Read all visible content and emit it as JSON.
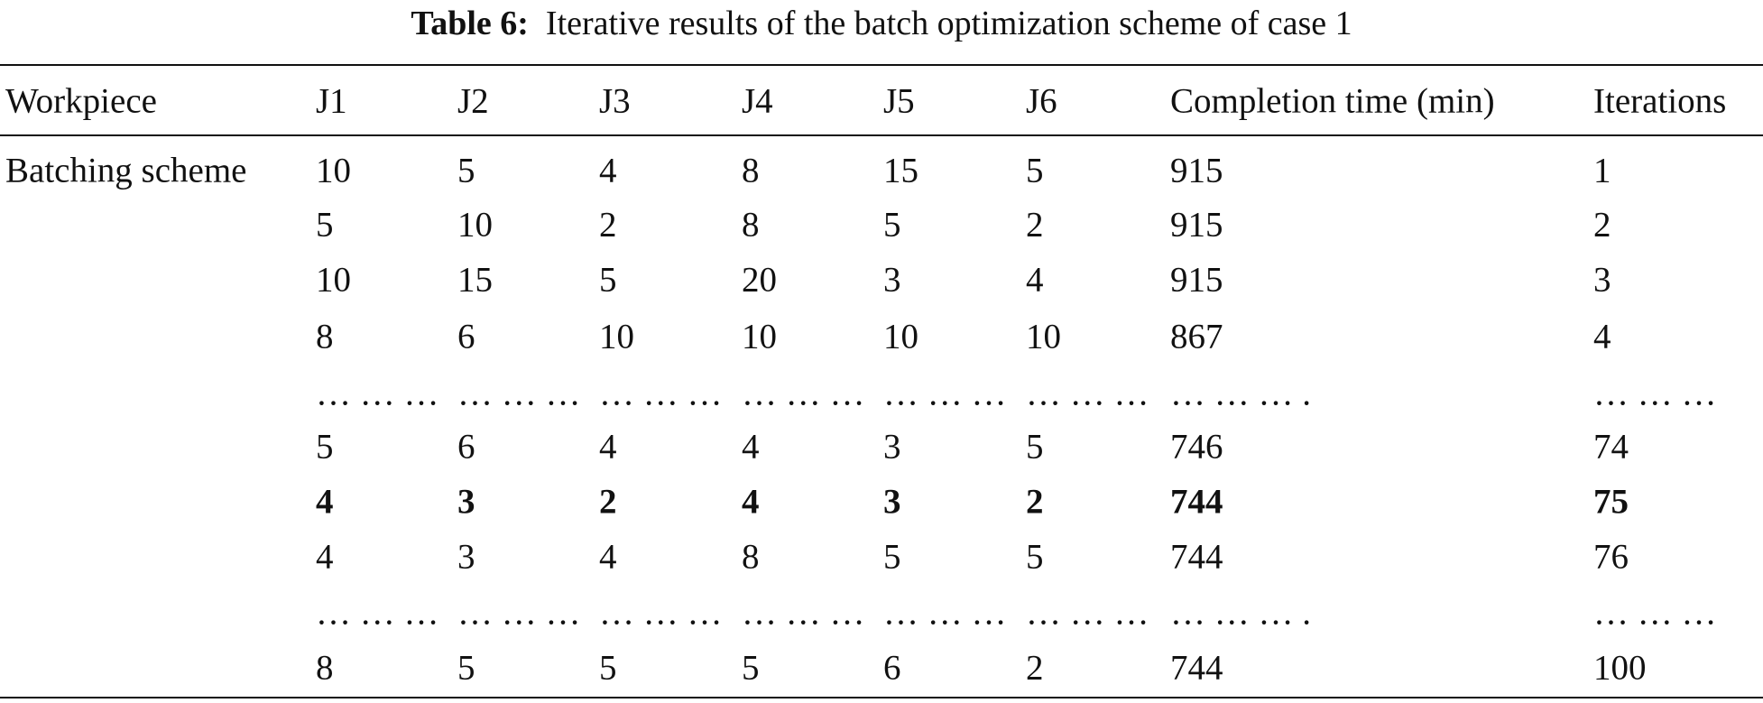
{
  "title": {
    "label": "Table 6:",
    "text": "Iterative results of the batch optimization scheme of case 1"
  },
  "table": {
    "headers": [
      "Workpiece",
      "J1",
      "J2",
      "J3",
      "J4",
      "J5",
      "J6",
      "Completion time (min)",
      "Iterations"
    ],
    "row_label": "Batching scheme",
    "rows": [
      {
        "cells": [
          10,
          5,
          4,
          8,
          15,
          5,
          915,
          1
        ],
        "bold": false
      },
      {
        "cells": [
          5,
          10,
          2,
          8,
          5,
          2,
          915,
          2
        ],
        "bold": false
      },
      {
        "cells": [
          10,
          15,
          5,
          20,
          3,
          4,
          915,
          3
        ],
        "bold": false
      },
      {
        "cells": [
          8,
          6,
          10,
          10,
          10,
          10,
          867,
          4
        ],
        "bold": false
      },
      {
        "cells": [
          "… … …",
          "… … …",
          "… … …",
          "… … …",
          "… … …",
          "… … …",
          "… … … .",
          "… … …"
        ],
        "bold": false
      },
      {
        "cells": [
          5,
          6,
          4,
          4,
          3,
          5,
          746,
          74
        ],
        "bold": false
      },
      {
        "cells": [
          4,
          3,
          2,
          4,
          3,
          2,
          744,
          75
        ],
        "bold": true
      },
      {
        "cells": [
          4,
          3,
          4,
          8,
          5,
          5,
          744,
          76
        ],
        "bold": false
      },
      {
        "cells": [
          "… … …",
          "… … …",
          "… … …",
          "… … …",
          "… … …",
          "… … …",
          "… … … .",
          "… … …"
        ],
        "bold": false
      },
      {
        "cells": [
          8,
          5,
          5,
          5,
          6,
          2,
          744,
          100
        ],
        "bold": false
      }
    ]
  }
}
